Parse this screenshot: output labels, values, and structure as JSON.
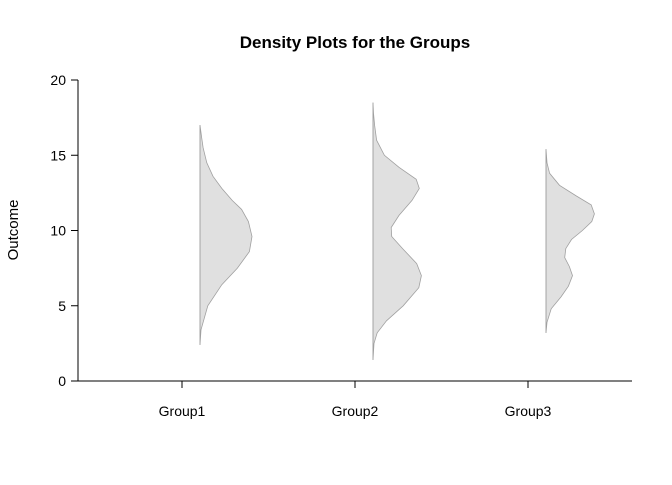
{
  "chart_data": {
    "type": "density",
    "title": "Density Plots for the Groups",
    "xlabel": "",
    "ylabel": "Outcome",
    "ylim": [
      0,
      20
    ],
    "yticks": [
      0,
      5,
      10,
      15,
      20
    ],
    "grid": false,
    "categories": [
      "Group1",
      "Group2",
      "Group3"
    ],
    "fill_color": "#e0e0e0",
    "stroke_color": "#a0a0a0",
    "series": [
      {
        "name": "Group1",
        "range": [
          2.4,
          17.0
        ],
        "density": [
          [
            2.4,
            0.0
          ],
          [
            3.4,
            0.02
          ],
          [
            5.0,
            0.15
          ],
          [
            6.4,
            0.42
          ],
          [
            7.5,
            0.72
          ],
          [
            8.6,
            0.95
          ],
          [
            9.6,
            1.0
          ],
          [
            10.6,
            0.93
          ],
          [
            11.4,
            0.8
          ],
          [
            12.0,
            0.62
          ],
          [
            12.8,
            0.42
          ],
          [
            13.6,
            0.25
          ],
          [
            14.5,
            0.13
          ],
          [
            15.5,
            0.06
          ],
          [
            16.2,
            0.03
          ],
          [
            17.0,
            0.0
          ]
        ]
      },
      {
        "name": "Group2",
        "range": [
          1.4,
          18.5
        ],
        "density": [
          [
            1.4,
            0.0
          ],
          [
            2.5,
            0.02
          ],
          [
            3.2,
            0.08
          ],
          [
            4.0,
            0.26
          ],
          [
            5.0,
            0.58
          ],
          [
            6.2,
            0.88
          ],
          [
            7.0,
            0.93
          ],
          [
            7.8,
            0.84
          ],
          [
            8.8,
            0.57
          ],
          [
            9.6,
            0.36
          ],
          [
            10.2,
            0.35
          ],
          [
            11.0,
            0.5
          ],
          [
            12.0,
            0.75
          ],
          [
            12.8,
            0.89
          ],
          [
            13.4,
            0.83
          ],
          [
            14.2,
            0.5
          ],
          [
            15.0,
            0.22
          ],
          [
            16.0,
            0.07
          ],
          [
            17.0,
            0.03
          ],
          [
            17.8,
            0.01
          ],
          [
            18.5,
            0.0
          ]
        ]
      },
      {
        "name": "Group3",
        "range": [
          3.2,
          15.4
        ],
        "density": [
          [
            3.2,
            0.0
          ],
          [
            3.9,
            0.02
          ],
          [
            4.8,
            0.1
          ],
          [
            5.6,
            0.29
          ],
          [
            6.3,
            0.43
          ],
          [
            7.0,
            0.51
          ],
          [
            7.6,
            0.45
          ],
          [
            8.2,
            0.36
          ],
          [
            8.8,
            0.38
          ],
          [
            9.4,
            0.49
          ],
          [
            10.0,
            0.7
          ],
          [
            10.6,
            0.88
          ],
          [
            11.1,
            0.93
          ],
          [
            11.7,
            0.87
          ],
          [
            12.3,
            0.58
          ],
          [
            13.0,
            0.26
          ],
          [
            13.8,
            0.07
          ],
          [
            14.5,
            0.02
          ],
          [
            15.4,
            0.0
          ]
        ]
      }
    ]
  }
}
